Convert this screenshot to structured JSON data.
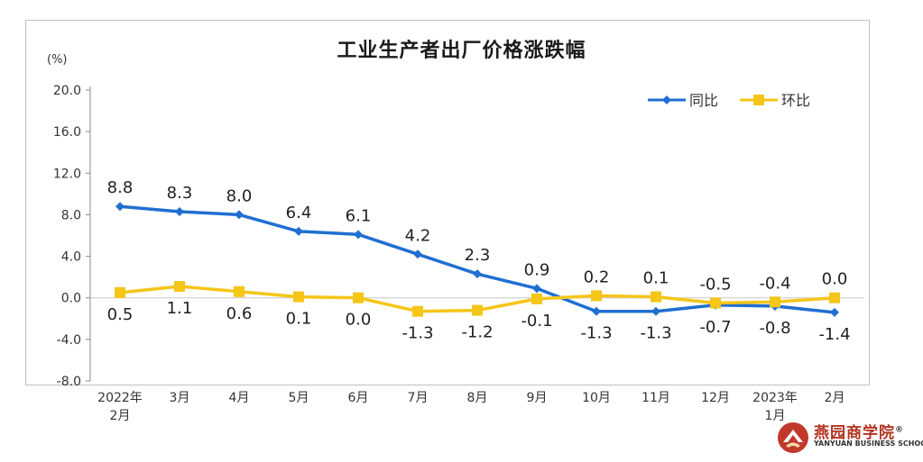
{
  "chart_data": {
    "type": "line",
    "title": "工业生产者出厂价格涨跌幅",
    "unit": "(%)",
    "categories": [
      "2022年\n2月",
      "3月",
      "4月",
      "5月",
      "6月",
      "7月",
      "8月",
      "9月",
      "10月",
      "11月",
      "12月",
      "2023年\n1月",
      "2月"
    ],
    "ylim": [
      -8.0,
      20.0
    ],
    "yticks": [
      "20.0",
      "16.0",
      "12.0",
      "8.0",
      "4.0",
      "0.0",
      "-4.0",
      "-8.0"
    ],
    "legend_position": "top-right",
    "series": [
      {
        "name": "同比",
        "color": "#1f6fd1",
        "marker": "diamond",
        "values": [
          8.8,
          8.3,
          8.0,
          6.4,
          6.1,
          4.2,
          2.3,
          0.9,
          -1.3,
          -1.3,
          -0.7,
          -0.8,
          -1.4
        ],
        "labels": [
          "8.8",
          "8.3",
          "8.0",
          "6.4",
          "6.1",
          "4.2",
          "2.3",
          "0.9",
          "-1.3",
          "-1.3",
          "-0.7",
          "-0.8",
          "-1.4"
        ]
      },
      {
        "name": "环比",
        "color": "#f5c518",
        "marker": "square",
        "values": [
          0.5,
          1.1,
          0.6,
          0.1,
          0.0,
          -1.3,
          -1.2,
          -0.1,
          0.2,
          0.1,
          -0.5,
          -0.4,
          0.0
        ],
        "labels": [
          "0.5",
          "1.1",
          "0.6",
          "0.1",
          "0.0",
          "-1.3",
          "-1.2",
          "-0.1",
          "0.2",
          "0.1",
          "-0.5",
          "-0.4",
          "0.0"
        ]
      }
    ]
  },
  "watermark": {
    "name_cn": "燕园商学院",
    "name_en": "YANYUAN BUSINESS SCHOOL",
    "registered": "®",
    "brand_color": "#b33322"
  }
}
